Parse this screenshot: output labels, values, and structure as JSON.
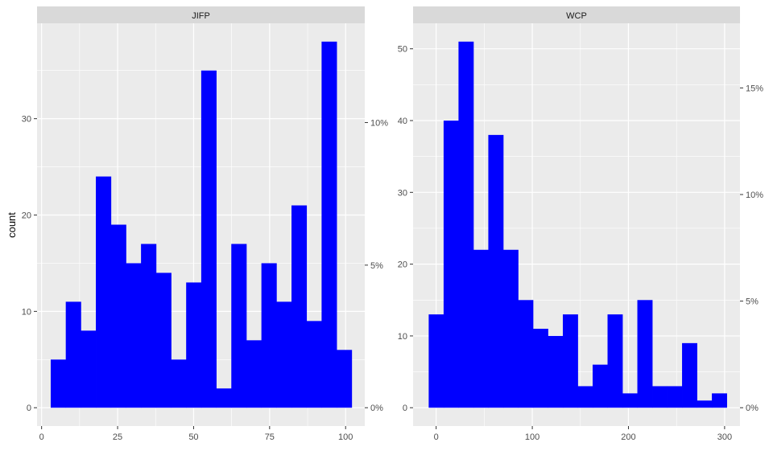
{
  "chart_data": {
    "type": "bar",
    "ylabel": "count",
    "bar_color": "#0000ff",
    "panel_background": "#ebebeb",
    "strip_background": "#d9d9d9",
    "grid_color": "#ffffff",
    "panels": [
      {
        "name": "JIFP",
        "strip_label": "JIFP",
        "xlim": [
          -1.5,
          106.3
        ],
        "ylim": [
          -1.9,
          39.9
        ],
        "x_ticks": [
          0,
          25,
          50,
          75,
          100
        ],
        "x_tick_labels": [
          "0",
          "25",
          "50",
          "75",
          "100"
        ],
        "y_ticks": [
          0,
          10,
          20,
          30
        ],
        "y_tick_labels": [
          "0",
          "10",
          "20",
          "30"
        ],
        "sec_ticks": [
          0,
          14.8,
          29.6
        ],
        "sec_tick_labels": [
          "0%",
          "5%",
          "10%"
        ],
        "bin_width": 4.95,
        "x_start": 3,
        "values": [
          5,
          11,
          8,
          24,
          19,
          15,
          17,
          14,
          5,
          13,
          35,
          2,
          17,
          7,
          15,
          11,
          21,
          9,
          38,
          6
        ]
      },
      {
        "name": "WCP",
        "strip_label": "WCP",
        "xlim": [
          -24,
          316
        ],
        "ylim": [
          -2.55,
          53.55
        ],
        "x_ticks": [
          0,
          100,
          200,
          300
        ],
        "x_tick_labels": [
          "0",
          "100",
          "200",
          "300"
        ],
        "y_ticks": [
          0,
          10,
          20,
          30,
          40,
          50
        ],
        "y_tick_labels": [
          "0",
          "10",
          "20",
          "30",
          "40",
          "50"
        ],
        "sec_ticks": [
          0,
          14.85,
          29.7,
          44.55
        ],
        "sec_tick_labels": [
          "0%",
          "5%",
          "10%",
          "15%"
        ],
        "bin_width": 15.5,
        "x_start": -7.75,
        "values": [
          13,
          40,
          51,
          22,
          38,
          22,
          15,
          11,
          10,
          13,
          3,
          6,
          13,
          2,
          15,
          3,
          3,
          9,
          1,
          2
        ]
      }
    ]
  }
}
